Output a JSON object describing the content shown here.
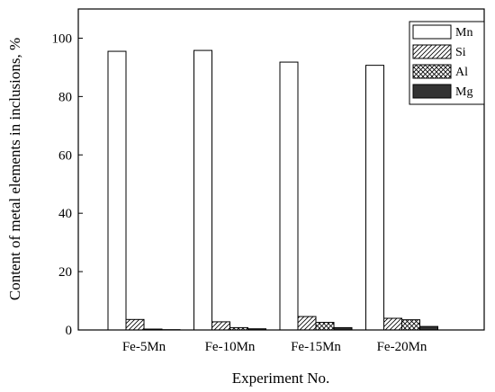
{
  "chart_data": {
    "type": "bar",
    "title": "",
    "xlabel": "Experiment No.",
    "ylabel": "Content of metal elements in inclusions, %",
    "categories": [
      "Fe-5Mn",
      "Fe-10Mn",
      "Fe-15Mn",
      "Fe-20Mn"
    ],
    "ylim": [
      0,
      110
    ],
    "yticks": [
      0,
      20,
      40,
      60,
      80,
      100
    ],
    "grid": false,
    "legend_position": "top-right",
    "series": [
      {
        "name": "Mn",
        "pattern": "open",
        "values": [
          95.5,
          95.8,
          91.8,
          90.7
        ]
      },
      {
        "name": "Si",
        "pattern": "diagonal-hatch",
        "values": [
          3.6,
          2.8,
          4.6,
          4.0
        ]
      },
      {
        "name": "Al",
        "pattern": "cross-hatch",
        "values": [
          0.3,
          0.8,
          2.6,
          3.5
        ]
      },
      {
        "name": "Mg",
        "pattern": "solid-dark",
        "values": [
          0.1,
          0.4,
          0.8,
          1.2
        ]
      }
    ]
  }
}
